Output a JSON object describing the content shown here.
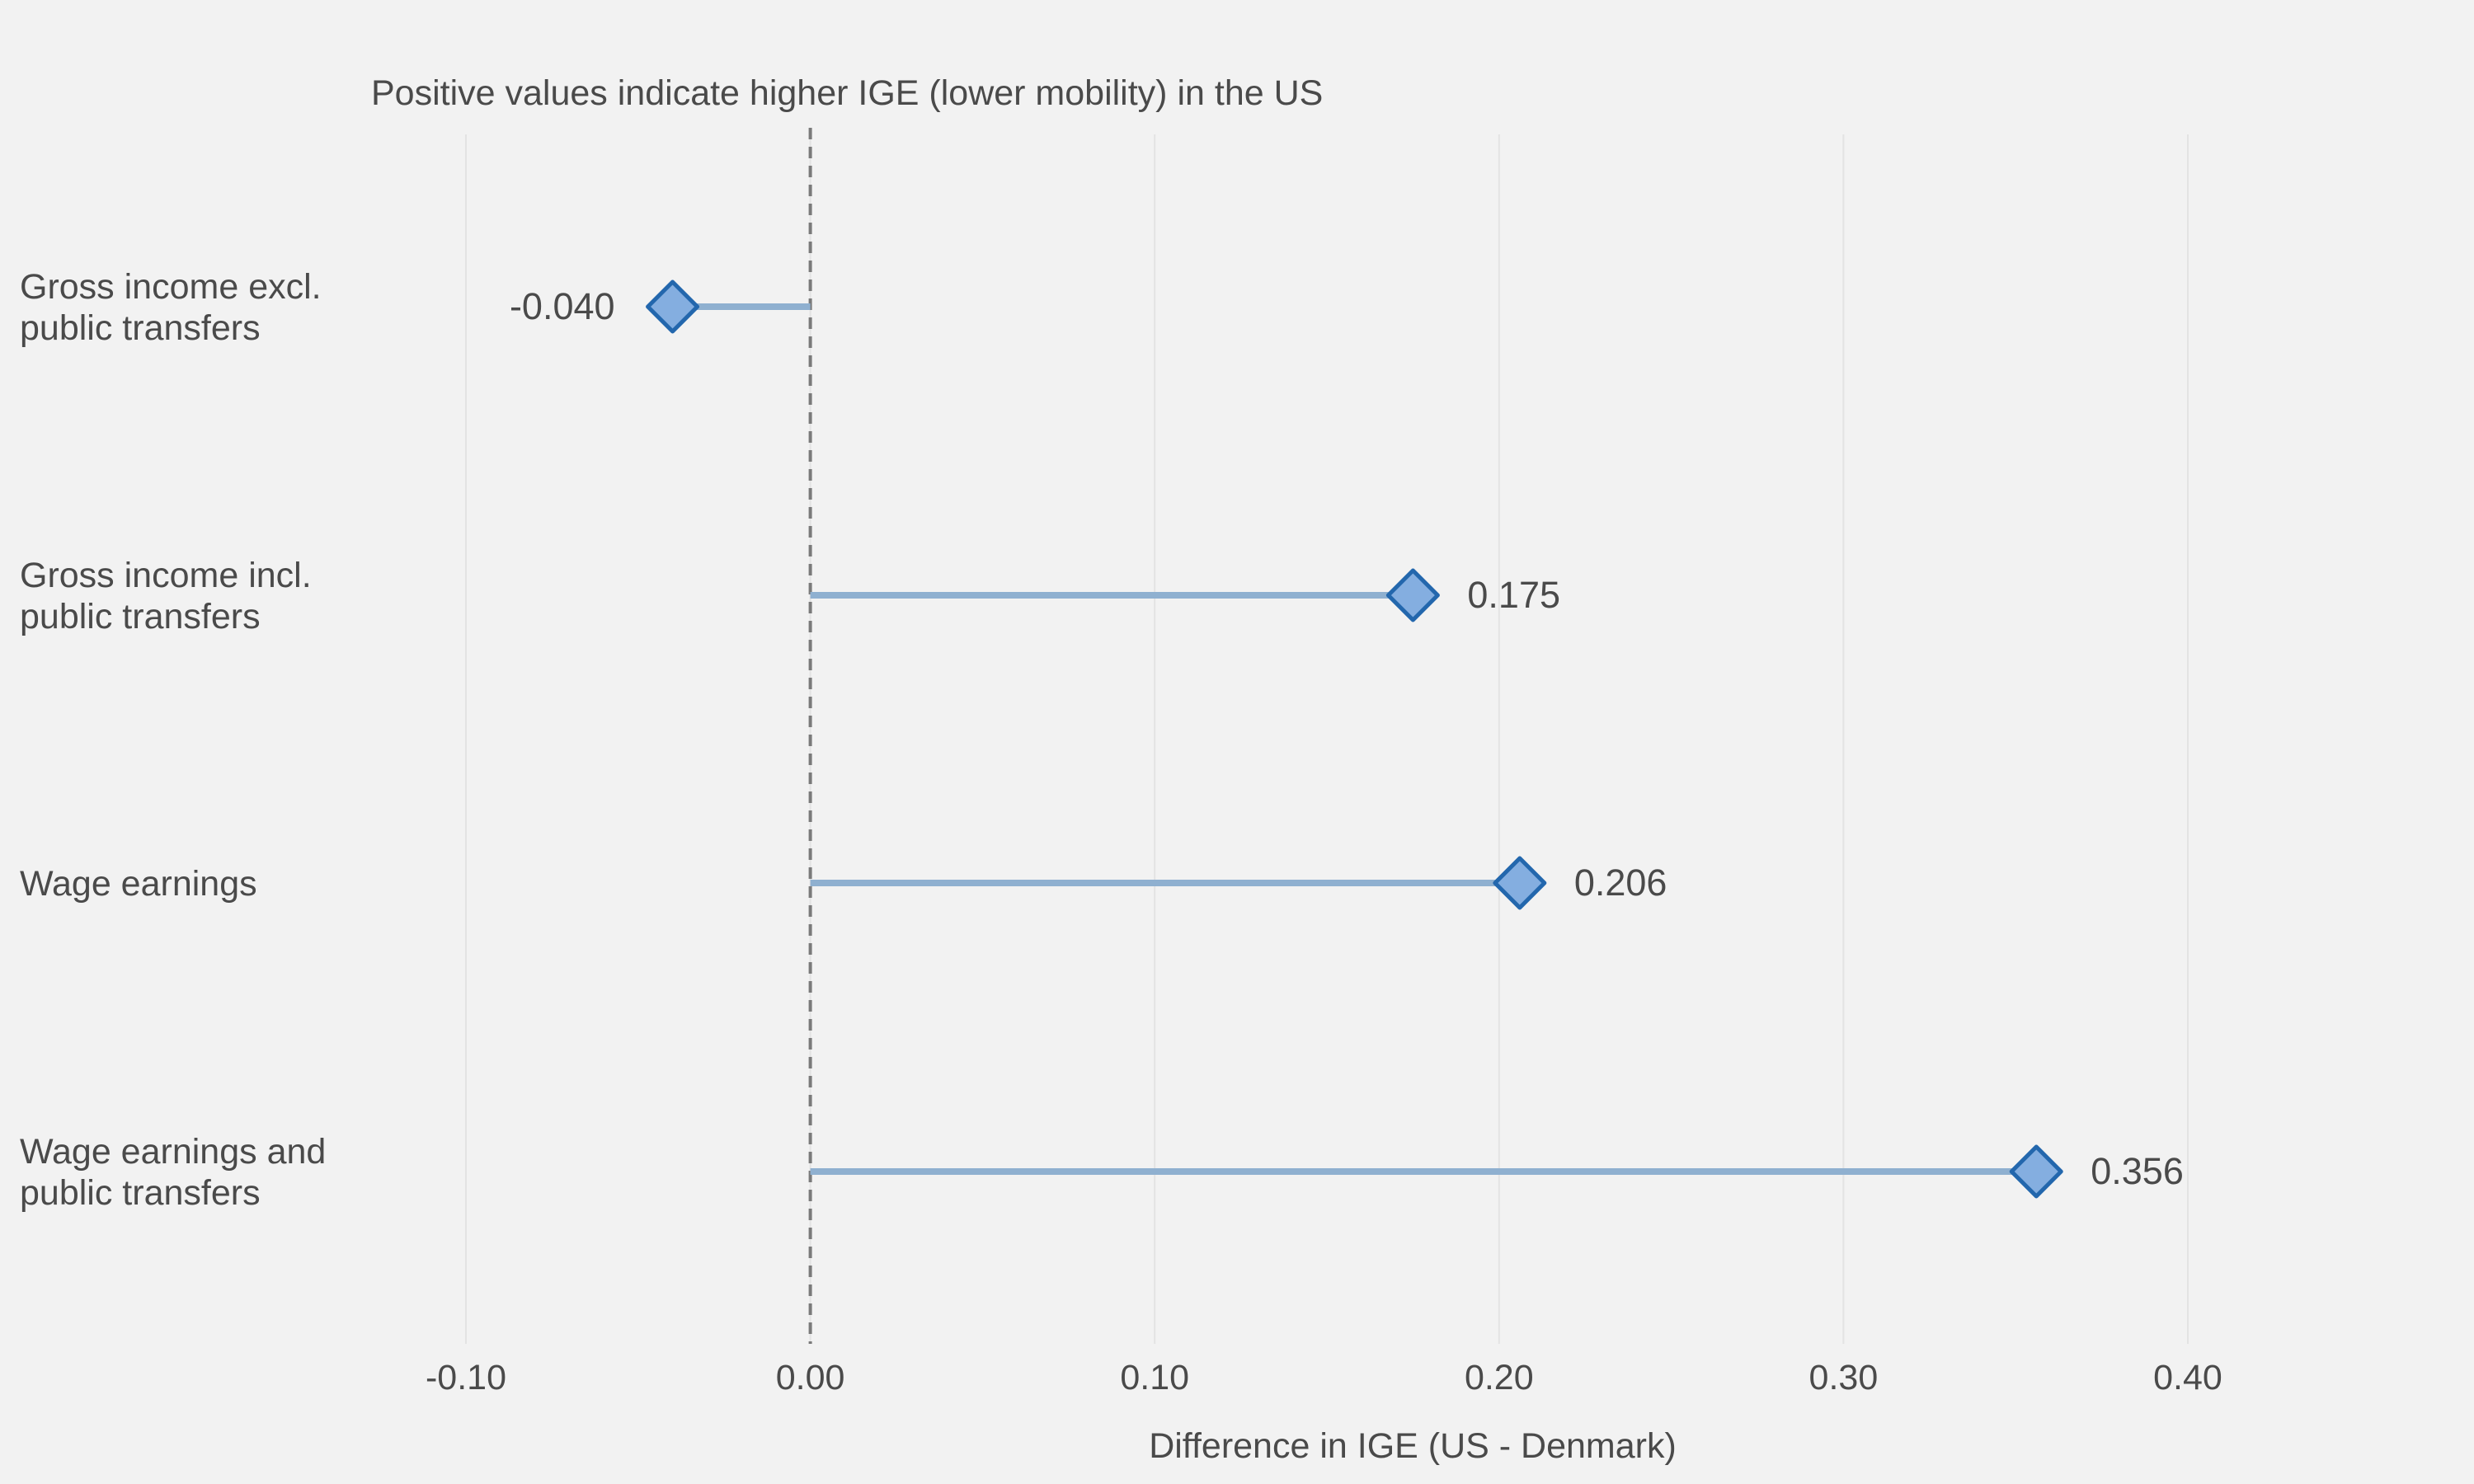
{
  "chart_data": {
    "type": "dot",
    "subtitle": "Positive values indicate higher IGE (lower mobility) in the US",
    "xlabel": "Difference in IGE (US - Denmark)",
    "ylabel": "",
    "xlim": [
      -0.1,
      0.4
    ],
    "xticks": [
      -0.1,
      0.0,
      0.1,
      0.2,
      0.3,
      0.4
    ],
    "xtick_labels": [
      "-0.10",
      "0.00",
      "0.10",
      "0.20",
      "0.30",
      "0.40"
    ],
    "grid": true,
    "reference_line": 0.0,
    "categories": [
      [
        "Gross income excl.",
        "public transfers"
      ],
      [
        "Gross income incl.",
        "public transfers"
      ],
      [
        "Wage earnings"
      ],
      [
        "Wage earnings and",
        "public transfers"
      ]
    ],
    "values": [
      -0.04,
      0.175,
      0.206,
      0.356
    ],
    "value_labels": [
      "-0.040",
      "0.175",
      "0.206",
      "0.356"
    ],
    "colors": {
      "background": "#f2f2f2",
      "grid": "#e3e3e3",
      "stem": "#8fb0d0",
      "marker_fill": "#84aee0",
      "marker_stroke": "#2367ad",
      "zero_line": "#7a7a7a",
      "text": "#4a4a4a"
    }
  }
}
